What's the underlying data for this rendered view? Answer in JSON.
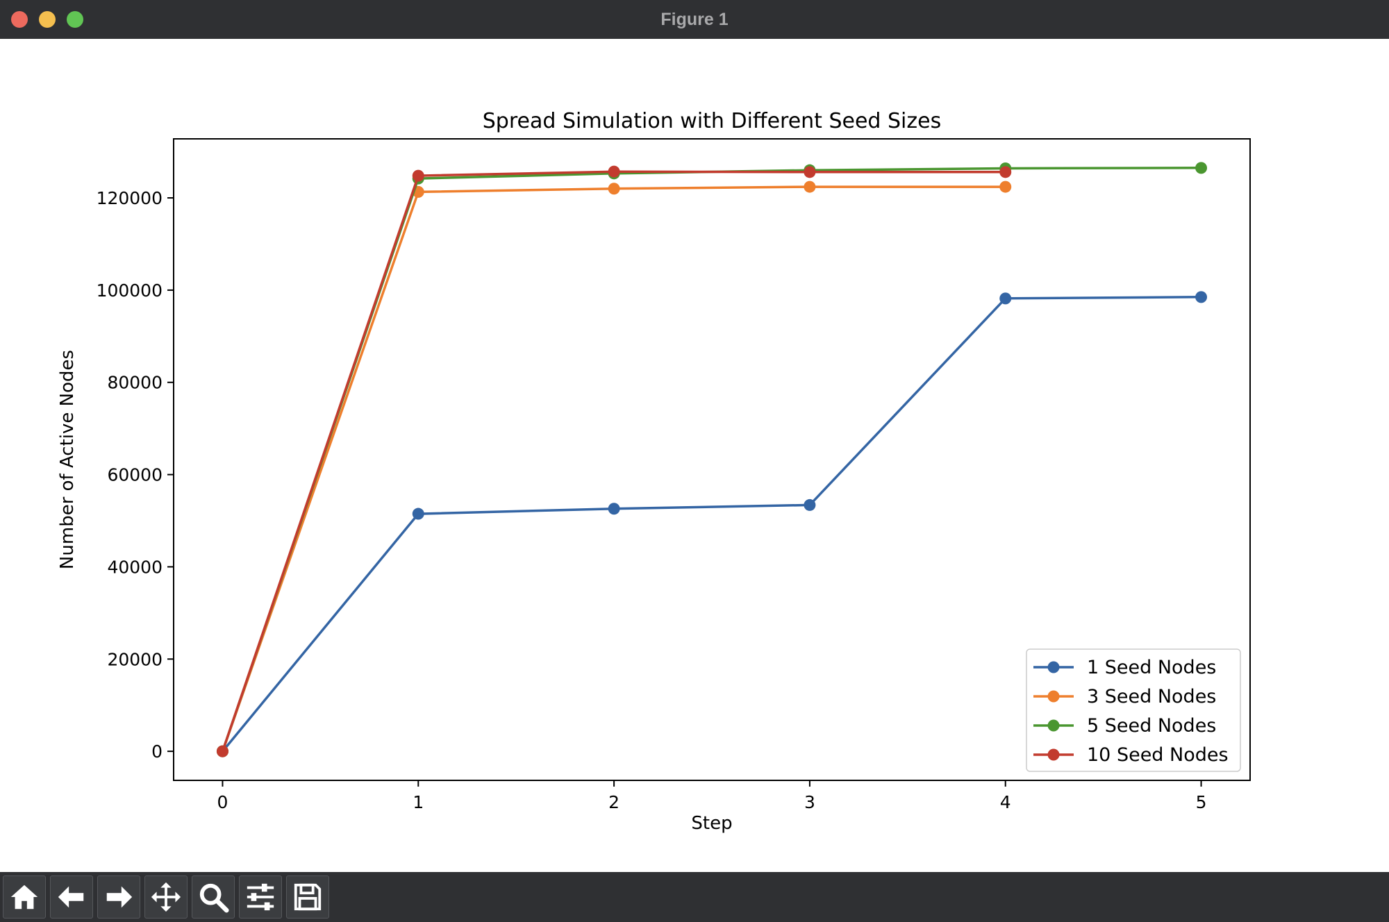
{
  "window": {
    "title": "Figure 1"
  },
  "toolbar": {
    "buttons": [
      {
        "name": "home-button",
        "icon": "home-icon"
      },
      {
        "name": "back-button",
        "icon": "arrow-left-icon"
      },
      {
        "name": "forward-button",
        "icon": "arrow-right-icon"
      },
      {
        "name": "pan-button",
        "icon": "move-icon"
      },
      {
        "name": "zoom-button",
        "icon": "magnifier-icon"
      },
      {
        "name": "configure-subplots-button",
        "icon": "sliders-icon"
      },
      {
        "name": "save-button",
        "icon": "floppy-disk-icon"
      }
    ]
  },
  "chart_data": {
    "type": "line",
    "title": "Spread Simulation with Different Seed Sizes",
    "xlabel": "Step",
    "ylabel": "Number of Active Nodes",
    "xlim": [
      -0.25,
      5.25
    ],
    "ylim": [
      -6300,
      132800
    ],
    "xticks": [
      0,
      1,
      2,
      3,
      4,
      5
    ],
    "yticks": [
      0,
      20000,
      40000,
      60000,
      80000,
      100000,
      120000
    ],
    "grid": false,
    "legend": "lower-right",
    "series": [
      {
        "name": "1 Seed Nodes",
        "color": "#3465a4",
        "x": [
          0,
          1,
          2,
          3,
          4,
          5
        ],
        "values": [
          0,
          51500,
          52600,
          53400,
          98200,
          98500
        ]
      },
      {
        "name": "3 Seed Nodes",
        "color": "#ee7f2d",
        "x": [
          0,
          1,
          2,
          3,
          4
        ],
        "values": [
          0,
          121300,
          122000,
          122400,
          122400
        ]
      },
      {
        "name": "5 Seed Nodes",
        "color": "#4a9630",
        "x": [
          0,
          1,
          2,
          3,
          4,
          5
        ],
        "values": [
          0,
          124200,
          125300,
          126000,
          126400,
          126500
        ]
      },
      {
        "name": "10 Seed Nodes",
        "color": "#c23b2e",
        "x": [
          0,
          1,
          2,
          3,
          4
        ],
        "values": [
          0,
          124800,
          125700,
          125600,
          125600
        ]
      }
    ]
  }
}
